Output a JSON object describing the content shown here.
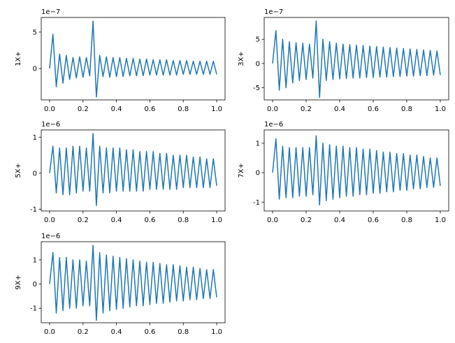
{
  "chart_data": [
    {
      "type": "line",
      "y_label": "1X+",
      "offset_label": "1e−7",
      "color": "#1f77b4",
      "x": [
        0,
        0.02,
        0.04,
        0.06,
        0.08,
        0.1,
        0.12,
        0.14,
        0.16,
        0.18,
        0.2,
        0.22,
        0.24,
        0.26,
        0.28,
        0.3,
        0.32,
        0.34,
        0.36,
        0.38,
        0.4,
        0.42,
        0.44,
        0.46,
        0.48,
        0.5,
        0.52,
        0.54,
        0.56,
        0.58,
        0.6,
        0.62,
        0.64,
        0.66,
        0.68,
        0.7,
        0.72,
        0.74,
        0.76,
        0.78,
        0.8,
        0.82,
        0.84,
        0.86,
        0.88,
        0.9,
        0.92,
        0.94,
        0.96,
        0.98,
        1
      ],
      "values": [
        0,
        4.7,
        -2.5,
        2,
        -2,
        1.8,
        -1.5,
        1.5,
        -1.3,
        1.6,
        -1.2,
        1.5,
        -1,
        6.5,
        -3.9,
        1.8,
        -1.1,
        1.6,
        -1.2,
        1.5,
        -1.1,
        1.5,
        -1.1,
        1.4,
        -1,
        1.4,
        -1,
        1.3,
        -1,
        1.3,
        -0.9,
        1.2,
        -0.9,
        1.2,
        -0.9,
        1.2,
        -0.9,
        1.1,
        -0.9,
        1.1,
        -0.8,
        1.1,
        -0.8,
        1,
        -0.8,
        1,
        -0.8,
        1,
        -0.8,
        1,
        -0.8
      ],
      "xlim": [
        -0.05,
        1.05
      ],
      "ylim": [
        -4.3,
        7
      ],
      "xticks": [
        {
          "value": 0,
          "label": "0.0"
        },
        {
          "value": 0.2,
          "label": "0.2"
        },
        {
          "value": 0.4,
          "label": "0.4"
        },
        {
          "value": 0.6,
          "label": "0.6"
        },
        {
          "value": 0.8,
          "label": "0.8"
        },
        {
          "value": 1,
          "label": "1.0"
        }
      ],
      "yticks": [
        0,
        5
      ]
    },
    {
      "type": "line",
      "y_label": "3X+",
      "offset_label": "1e−7",
      "color": "#1f77b4",
      "x": [
        0,
        0.02,
        0.04,
        0.06,
        0.08,
        0.1,
        0.12,
        0.14,
        0.16,
        0.18,
        0.2,
        0.22,
        0.24,
        0.26,
        0.28,
        0.3,
        0.32,
        0.34,
        0.36,
        0.38,
        0.4,
        0.42,
        0.44,
        0.46,
        0.48,
        0.5,
        0.52,
        0.54,
        0.56,
        0.58,
        0.6,
        0.62,
        0.64,
        0.66,
        0.68,
        0.7,
        0.72,
        0.74,
        0.76,
        0.78,
        0.8,
        0.82,
        0.84,
        0.86,
        0.88,
        0.9,
        0.92,
        0.94,
        0.96,
        0.98,
        1
      ],
      "values": [
        0,
        6.8,
        -5.5,
        5,
        -5,
        4.5,
        -4,
        4.3,
        -3.5,
        4.2,
        -3.3,
        4,
        -3,
        8.8,
        -7,
        5,
        -3.5,
        4.5,
        -3.3,
        4.2,
        -3.2,
        4,
        -3.1,
        3.9,
        -3,
        3.8,
        -3,
        3.7,
        -2.9,
        3.6,
        -2.9,
        3.5,
        -2.8,
        3.4,
        -2.8,
        3.3,
        -2.7,
        3.2,
        -2.7,
        3.1,
        -2.6,
        3,
        -2.6,
        2.9,
        -2.5,
        2.8,
        -2.5,
        2.7,
        -2.4,
        2.6,
        -2.4
      ],
      "xlim": [
        -0.05,
        1.05
      ],
      "ylim": [
        -7.5,
        9.5
      ],
      "xticks": [
        {
          "value": 0,
          "label": "0.0"
        },
        {
          "value": 0.2,
          "label": "0.2"
        },
        {
          "value": 0.4,
          "label": "0.4"
        },
        {
          "value": 0.6,
          "label": "0.6"
        },
        {
          "value": 0.8,
          "label": "0.8"
        },
        {
          "value": 1,
          "label": "1.0"
        }
      ],
      "yticks": [
        -5,
        0,
        5
      ]
    },
    {
      "type": "line",
      "y_label": "5X+",
      "offset_label": "1e−6",
      "color": "#1f77b4",
      "x": [
        0,
        0.02,
        0.04,
        0.06,
        0.08,
        0.1,
        0.12,
        0.14,
        0.16,
        0.18,
        0.2,
        0.22,
        0.24,
        0.26,
        0.28,
        0.3,
        0.32,
        0.34,
        0.36,
        0.38,
        0.4,
        0.42,
        0.44,
        0.46,
        0.48,
        0.5,
        0.52,
        0.54,
        0.56,
        0.58,
        0.6,
        0.62,
        0.64,
        0.66,
        0.68,
        0.7,
        0.72,
        0.74,
        0.76,
        0.78,
        0.8,
        0.82,
        0.84,
        0.86,
        0.88,
        0.9,
        0.92,
        0.94,
        0.96,
        0.98,
        1
      ],
      "values": [
        0,
        0.75,
        -0.55,
        0.7,
        -0.6,
        0.7,
        -0.6,
        0.75,
        -0.55,
        0.75,
        -0.5,
        0.7,
        -0.5,
        1.1,
        -0.9,
        0.75,
        -0.55,
        0.7,
        -0.55,
        0.7,
        -0.5,
        0.7,
        -0.5,
        0.65,
        -0.5,
        0.65,
        -0.5,
        0.6,
        -0.5,
        0.6,
        -0.45,
        0.6,
        -0.45,
        0.55,
        -0.45,
        0.55,
        -0.45,
        0.5,
        -0.45,
        0.5,
        -0.4,
        0.5,
        -0.4,
        0.45,
        -0.4,
        0.45,
        -0.4,
        0.4,
        -0.4,
        0.4,
        -0.35
      ],
      "xlim": [
        -0.05,
        1.05
      ],
      "ylim": [
        -1.05,
        1.2
      ],
      "xticks": [
        {
          "value": 0,
          "label": "0.0"
        },
        {
          "value": 0.2,
          "label": "0.2"
        },
        {
          "value": 0.4,
          "label": "0.4"
        },
        {
          "value": 0.6,
          "label": "0.6"
        },
        {
          "value": 0.8,
          "label": "0.8"
        },
        {
          "value": 1,
          "label": "1.0"
        }
      ],
      "yticks": [
        -1,
        0,
        1
      ]
    },
    {
      "type": "line",
      "y_label": "7X+",
      "offset_label": "1e−6",
      "color": "#1f77b4",
      "x": [
        0,
        0.02,
        0.04,
        0.06,
        0.08,
        0.1,
        0.12,
        0.14,
        0.16,
        0.18,
        0.2,
        0.22,
        0.24,
        0.26,
        0.28,
        0.3,
        0.32,
        0.34,
        0.36,
        0.38,
        0.4,
        0.42,
        0.44,
        0.46,
        0.48,
        0.5,
        0.52,
        0.54,
        0.56,
        0.58,
        0.6,
        0.62,
        0.64,
        0.66,
        0.68,
        0.7,
        0.72,
        0.74,
        0.76,
        0.78,
        0.8,
        0.82,
        0.84,
        0.86,
        0.88,
        0.9,
        0.92,
        0.94,
        0.96,
        0.98,
        1
      ],
      "values": [
        0,
        1.15,
        -0.9,
        0.9,
        -0.85,
        0.85,
        -0.85,
        0.85,
        -0.8,
        0.85,
        -0.8,
        0.85,
        -0.75,
        1.25,
        -1.1,
        1,
        -0.95,
        0.95,
        -0.9,
        0.9,
        -0.85,
        0.9,
        -0.8,
        0.85,
        -0.8,
        0.85,
        -0.75,
        0.8,
        -0.75,
        0.8,
        -0.7,
        0.75,
        -0.7,
        0.7,
        -0.65,
        0.7,
        -0.65,
        0.65,
        -0.6,
        0.65,
        -0.6,
        0.6,
        -0.55,
        0.6,
        -0.55,
        0.55,
        -0.5,
        0.5,
        -0.5,
        0.5,
        -0.45
      ],
      "xlim": [
        -0.05,
        1.05
      ],
      "ylim": [
        -1.3,
        1.45
      ],
      "xticks": [
        {
          "value": 0,
          "label": "0.0"
        },
        {
          "value": 0.2,
          "label": "0.2"
        },
        {
          "value": 0.4,
          "label": "0.4"
        },
        {
          "value": 0.6,
          "label": "0.6"
        },
        {
          "value": 0.8,
          "label": "0.8"
        },
        {
          "value": 1,
          "label": "1.0"
        }
      ],
      "yticks": [
        -1,
        0,
        1
      ]
    },
    {
      "type": "line",
      "y_label": "9X+",
      "offset_label": "1e−6",
      "color": "#1f77b4",
      "x": [
        0,
        0.02,
        0.04,
        0.06,
        0.08,
        0.1,
        0.12,
        0.14,
        0.16,
        0.18,
        0.2,
        0.22,
        0.24,
        0.26,
        0.28,
        0.3,
        0.32,
        0.34,
        0.36,
        0.38,
        0.4,
        0.42,
        0.44,
        0.46,
        0.48,
        0.5,
        0.52,
        0.54,
        0.56,
        0.58,
        0.6,
        0.62,
        0.64,
        0.66,
        0.68,
        0.7,
        0.72,
        0.74,
        0.76,
        0.78,
        0.8,
        0.82,
        0.84,
        0.86,
        0.88,
        0.9,
        0.92,
        0.94,
        0.96,
        0.98,
        1
      ],
      "values": [
        0,
        1.3,
        -1.2,
        1.1,
        -1.1,
        1.1,
        -1,
        1,
        -1,
        1,
        -0.9,
        0.95,
        -0.9,
        1.6,
        -1.5,
        1.3,
        -1.2,
        1.2,
        -1.1,
        1.15,
        -1.05,
        1.1,
        -1,
        1.05,
        -0.95,
        1,
        -0.9,
        0.95,
        -0.9,
        0.9,
        -0.85,
        0.9,
        -0.8,
        0.85,
        -0.8,
        0.8,
        -0.75,
        0.8,
        -0.7,
        0.75,
        -0.7,
        0.7,
        -0.65,
        0.7,
        -0.65,
        0.65,
        -0.6,
        0.6,
        -0.6,
        0.6,
        -0.55
      ],
      "xlim": [
        -0.05,
        1.05
      ],
      "ylim": [
        -1.6,
        1.75
      ],
      "xticks": [
        {
          "value": 0,
          "label": "0.0"
        },
        {
          "value": 0.2,
          "label": "0.2"
        },
        {
          "value": 0.4,
          "label": "0.4"
        },
        {
          "value": 0.6,
          "label": "0.6"
        },
        {
          "value": 0.8,
          "label": "0.8"
        },
        {
          "value": 1,
          "label": "1.0"
        }
      ],
      "yticks": [
        -1,
        0,
        1
      ]
    }
  ]
}
